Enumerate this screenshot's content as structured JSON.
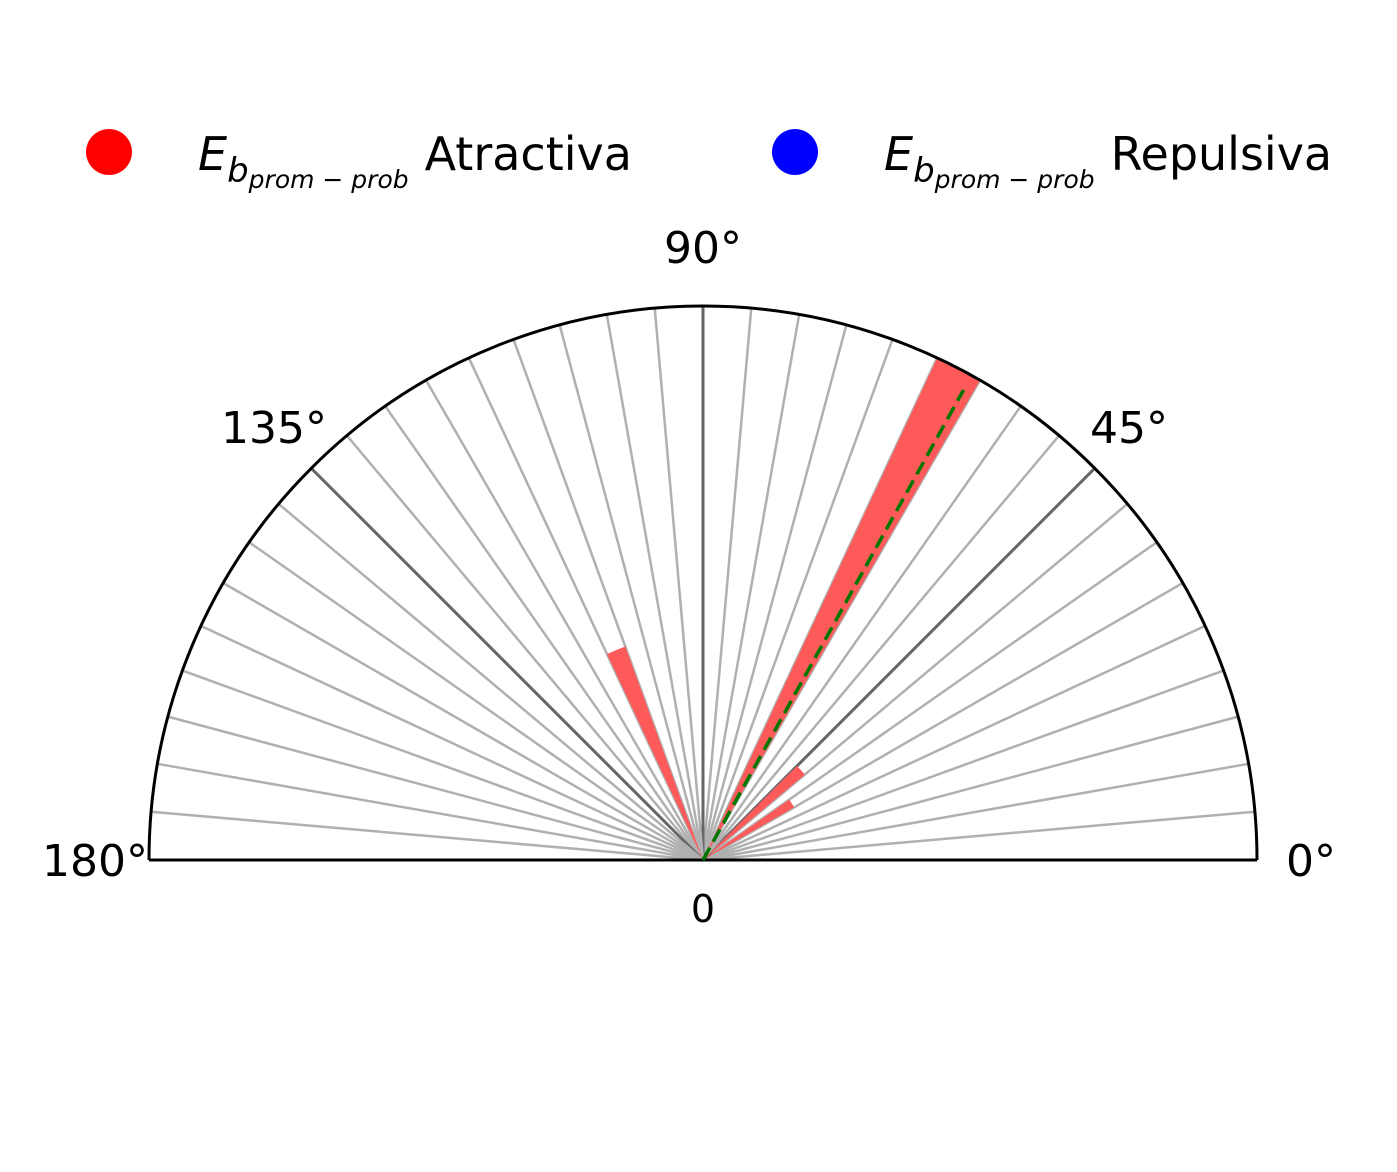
{
  "chart_data": {
    "type": "polar-bar",
    "angle_range_deg": [
      0,
      180
    ],
    "angle_ticks": [
      "0°",
      "45°",
      "90°",
      "135°",
      "180°"
    ],
    "radial_tick_label": "0",
    "r_max": 1.0,
    "grid": true,
    "legend_placement": "top",
    "legend": [
      {
        "symbol": "E",
        "subscript": "b",
        "subsubscript": "prom − prob",
        "label": "Atractiva",
        "color": "#ff0000"
      },
      {
        "symbol": "E",
        "subscript": "b",
        "subsubscript": "prom − prob",
        "label": "Repulsiva",
        "color": "#0000ff"
      }
    ],
    "series": [
      {
        "name": "Atractiva",
        "color": "#ff5a5a",
        "bars": [
          {
            "angle_deg": 62.5,
            "width_deg": 5,
            "value": 1.0
          },
          {
            "angle_deg": 42.5,
            "width_deg": 5,
            "value": 0.24
          },
          {
            "angle_deg": 32.5,
            "width_deg": 5,
            "value": 0.19
          },
          {
            "angle_deg": 112.5,
            "width_deg": 5,
            "value": 0.41
          }
        ]
      }
    ],
    "reference_line": {
      "angle_deg": 61,
      "value": 0.97,
      "color": "#007700",
      "style": "dashed"
    }
  }
}
